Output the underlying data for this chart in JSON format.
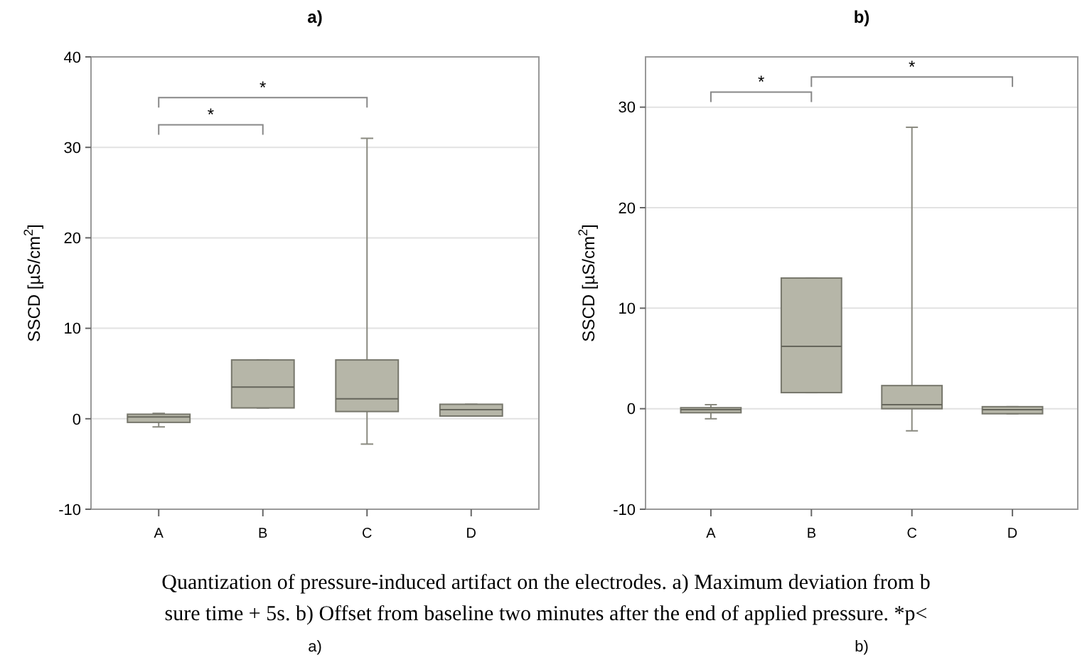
{
  "chart_data": [
    {
      "type": "box",
      "title": "a)",
      "ylabel": "SSCD [µS/cm$^{2}$]",
      "categories": [
        "A",
        "B",
        "C",
        "D"
      ],
      "ylim": [
        -10,
        40
      ],
      "yticks": [
        -10,
        0,
        10,
        20,
        30,
        40
      ],
      "grid": "y",
      "color": "#b6b6a8",
      "boxes": [
        {
          "low": -0.9,
          "q1": -0.4,
          "median": 0.2,
          "q3": 0.5,
          "high": 0.6
        },
        {
          "low": 1.2,
          "q1": 1.2,
          "median": 3.5,
          "q3": 6.5,
          "high": 6.5
        },
        {
          "low": -2.8,
          "q1": 0.8,
          "median": 2.2,
          "q3": 6.5,
          "high": 31
        },
        {
          "low": 0.3,
          "q1": 0.3,
          "median": 1.0,
          "q3": 1.6,
          "high": 1.6
        }
      ],
      "annotations": [
        "*",
        "*",
        "a)",
        "Quantization of pressure-induced artifact on the electrodes. a) Maximum deviation from b",
        "sure time + 5s. b) Offset from baseline two minutes after the end of applied pressure. *p<"
      ]
    },
    {
      "type": "box",
      "title": "b)",
      "ylabel": "SSCD [µS/cm$^{2}$]",
      "categories": [
        "A",
        "B",
        "C",
        "D"
      ],
      "ylim": [
        -10,
        35
      ],
      "yticks": [
        -10,
        0,
        10,
        20,
        30
      ],
      "grid": "y",
      "color": "#b6b6a8",
      "boxes": [
        {
          "low": -1.0,
          "q1": -0.4,
          "median": -0.1,
          "q3": 0.1,
          "high": 0.4
        },
        {
          "low": 1.6,
          "q1": 1.6,
          "median": 6.2,
          "q3": 13,
          "high": 13
        },
        {
          "low": -2.2,
          "q1": 0,
          "median": 0.4,
          "q3": 2.3,
          "high": 28
        },
        {
          "low": -0.5,
          "q1": -0.5,
          "median": -0.1,
          "q3": 0.2,
          "high": 0.2
        }
      ],
      "annotations": [
        "*",
        "*",
        "b)"
      ]
    }
  ]
}
